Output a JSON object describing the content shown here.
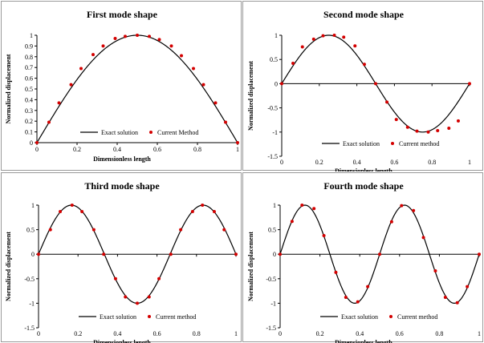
{
  "chart_data": [
    {
      "type": "line+scatter",
      "title": "First mode shape",
      "xlabel": "Dimensionless length",
      "ylabel": "Normalized displacement",
      "xlim": [
        0,
        1
      ],
      "ylim": [
        0,
        1
      ],
      "x_ticks": [
        "0",
        "0.2",
        "0.4",
        "0.6",
        "0.8",
        "1"
      ],
      "y_ticks": [
        "0",
        "0.1",
        "0.2",
        "0.3",
        "0.4",
        "0.5",
        "0.6",
        "0.7",
        "0.8",
        "0.9",
        "1"
      ],
      "legend": {
        "placement": "bottom",
        "line_label": "Exact solution",
        "points_label": "Current Method"
      },
      "grid": false,
      "exact_solution": {
        "function": "sin(pi x)"
      },
      "points": [
        {
          "x": 0,
          "y": 0
        },
        {
          "x": 0.06,
          "y": 0.19
        },
        {
          "x": 0.11,
          "y": 0.37
        },
        {
          "x": 0.17,
          "y": 0.54
        },
        {
          "x": 0.22,
          "y": 0.69
        },
        {
          "x": 0.28,
          "y": 0.82
        },
        {
          "x": 0.33,
          "y": 0.9
        },
        {
          "x": 0.39,
          "y": 0.97
        },
        {
          "x": 0.44,
          "y": 0.99
        },
        {
          "x": 0.5,
          "y": 1.0
        },
        {
          "x": 0.56,
          "y": 0.99
        },
        {
          "x": 0.61,
          "y": 0.96
        },
        {
          "x": 0.67,
          "y": 0.9
        },
        {
          "x": 0.72,
          "y": 0.81
        },
        {
          "x": 0.78,
          "y": 0.69
        },
        {
          "x": 0.83,
          "y": 0.54
        },
        {
          "x": 0.89,
          "y": 0.37
        },
        {
          "x": 0.94,
          "y": 0.19
        },
        {
          "x": 1,
          "y": 0
        }
      ]
    },
    {
      "type": "line+scatter",
      "title": "Second mode shape",
      "xlabel": "Dimensionless length",
      "ylabel": "Normalized displacement",
      "xlim": [
        0,
        1
      ],
      "ylim": [
        -1.5,
        1
      ],
      "x_ticks": [
        "0",
        "0.2",
        "0.4",
        "0.6",
        "0.8",
        "1"
      ],
      "y_ticks": [
        "-1.5",
        "-1",
        "-0.5",
        "0",
        "0.5",
        "1"
      ],
      "legend": {
        "placement": "bottom",
        "line_label": "Exact solution",
        "points_label": "Current method"
      },
      "grid": false,
      "exact_solution": {
        "function": "sin(2 pi x) shape with zero at x = 0.5"
      },
      "points": [
        {
          "x": 0,
          "y": 0
        },
        {
          "x": 0.06,
          "y": 0.42
        },
        {
          "x": 0.11,
          "y": 0.76
        },
        {
          "x": 0.17,
          "y": 0.92
        },
        {
          "x": 0.22,
          "y": 0.99
        },
        {
          "x": 0.28,
          "y": 1.0
        },
        {
          "x": 0.33,
          "y": 0.96
        },
        {
          "x": 0.39,
          "y": 0.78
        },
        {
          "x": 0.44,
          "y": 0.4
        },
        {
          "x": 0.5,
          "y": 0
        },
        {
          "x": 0.56,
          "y": -0.38
        },
        {
          "x": 0.61,
          "y": -0.74
        },
        {
          "x": 0.67,
          "y": -0.9
        },
        {
          "x": 0.72,
          "y": -0.98
        },
        {
          "x": 0.78,
          "y": -1.0
        },
        {
          "x": 0.83,
          "y": -0.97
        },
        {
          "x": 0.89,
          "y": -0.92
        },
        {
          "x": 0.94,
          "y": -0.77
        },
        {
          "x": 1,
          "y": 0
        }
      ]
    },
    {
      "type": "line+scatter",
      "title": "Third mode shape",
      "xlabel": "Dimensionless length",
      "ylabel": "Normalized displacement",
      "xlim": [
        0,
        1
      ],
      "ylim": [
        -1.5,
        1
      ],
      "x_ticks": [
        "0",
        "0.2",
        "0.4",
        "0.6",
        "0.8",
        "1"
      ],
      "y_ticks": [
        "-1.5",
        "-1",
        "-0.5",
        "0",
        "0.5",
        "1"
      ],
      "legend": {
        "placement": "bottom",
        "line_label": "Exact solution",
        "points_label": "Current method"
      },
      "grid": false,
      "exact_solution": {
        "function": "sin(3 pi x)"
      },
      "points": [
        {
          "x": 0,
          "y": 0
        },
        {
          "x": 0.06,
          "y": 0.5
        },
        {
          "x": 0.11,
          "y": 0.87
        },
        {
          "x": 0.17,
          "y": 1.0
        },
        {
          "x": 0.22,
          "y": 0.87
        },
        {
          "x": 0.28,
          "y": 0.5
        },
        {
          "x": 0.33,
          "y": 0
        },
        {
          "x": 0.39,
          "y": -0.5
        },
        {
          "x": 0.44,
          "y": -0.87
        },
        {
          "x": 0.5,
          "y": -1.0
        },
        {
          "x": 0.56,
          "y": -0.87
        },
        {
          "x": 0.61,
          "y": -0.5
        },
        {
          "x": 0.67,
          "y": 0
        },
        {
          "x": 0.72,
          "y": 0.5
        },
        {
          "x": 0.78,
          "y": 0.87
        },
        {
          "x": 0.83,
          "y": 1.0
        },
        {
          "x": 0.89,
          "y": 0.87
        },
        {
          "x": 0.94,
          "y": 0.5
        },
        {
          "x": 1,
          "y": 0
        }
      ]
    },
    {
      "type": "line+scatter",
      "title": "Fourth mode shape",
      "xlabel": "Dimensionless length",
      "ylabel": "Normalized displacement",
      "xlim": [
        0,
        1
      ],
      "ylim": [
        -1.5,
        1
      ],
      "x_ticks": [
        "0",
        "0.2",
        "0.4",
        "0.6",
        "0.8",
        "1"
      ],
      "y_ticks": [
        "-1.5",
        "-1",
        "-0.5",
        "0",
        "0.5",
        "1"
      ],
      "legend": {
        "placement": "bottom",
        "line_label": "Exact solution",
        "points_label": "Current method"
      },
      "grid": false,
      "exact_solution": {
        "function": "sin(4 pi x)"
      },
      "points": [
        {
          "x": 0,
          "y": 0
        },
        {
          "x": 0.06,
          "y": 0.67
        },
        {
          "x": 0.11,
          "y": 1.0
        },
        {
          "x": 0.17,
          "y": 0.93
        },
        {
          "x": 0.22,
          "y": 0.38
        },
        {
          "x": 0.28,
          "y": -0.37
        },
        {
          "x": 0.33,
          "y": -0.88
        },
        {
          "x": 0.39,
          "y": -0.97
        },
        {
          "x": 0.44,
          "y": -0.66
        },
        {
          "x": 0.5,
          "y": 0
        },
        {
          "x": 0.56,
          "y": 0.66
        },
        {
          "x": 0.61,
          "y": 0.99
        },
        {
          "x": 0.67,
          "y": 0.89
        },
        {
          "x": 0.72,
          "y": 0.34
        },
        {
          "x": 0.78,
          "y": -0.34
        },
        {
          "x": 0.83,
          "y": -0.88
        },
        {
          "x": 0.89,
          "y": -0.99
        },
        {
          "x": 0.94,
          "y": -0.66
        },
        {
          "x": 1,
          "y": 0
        }
      ]
    }
  ],
  "colors": {
    "line": "#000000",
    "points": "#d40000",
    "axis": "#000000"
  }
}
